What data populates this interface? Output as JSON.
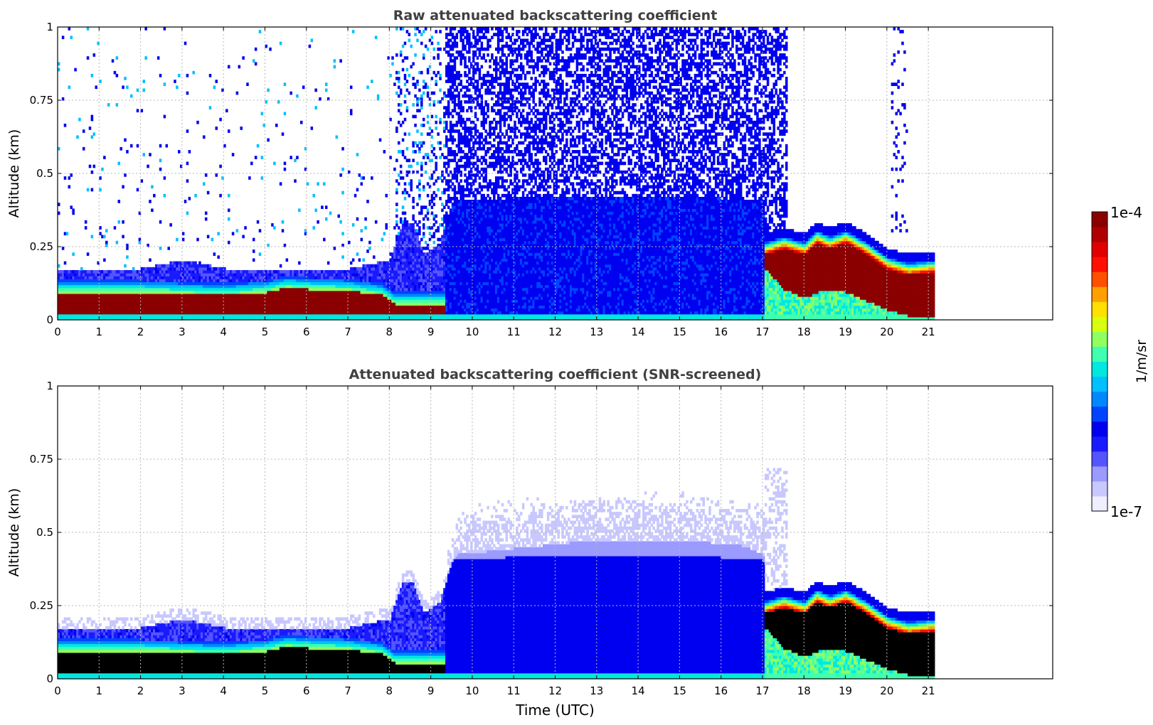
{
  "chart_data": [
    {
      "type": "heatmap",
      "title": "Raw attenuated backscattering coefficient",
      "xlabel": "",
      "ylabel": "Altitude (km)",
      "xlim": [
        0,
        24
      ],
      "ylim": [
        0,
        1
      ],
      "x_ticks": [
        "0",
        "1",
        "2",
        "3",
        "4",
        "5",
        "6",
        "7",
        "8",
        "9",
        "10",
        "11",
        "12",
        "13",
        "14",
        "15",
        "16",
        "17",
        "18",
        "19",
        "20",
        "21"
      ],
      "y_ticks": [
        "0",
        "0.25",
        "0.5",
        "0.75",
        "1"
      ],
      "grid": true,
      "data_end_time": 21.15,
      "layers": [
        {
          "feature": "surface aerosol layer",
          "time_range": [
            0,
            8.1
          ],
          "altitude_top": 0.12,
          "level": "saturated"
        },
        {
          "feature": "surface aerosol layer",
          "time_range": [
            8.3,
            9.3
          ],
          "altitude_top": 0.07,
          "level": "saturated"
        },
        {
          "feature": "noise and weak return",
          "time_range": [
            9.3,
            17.6
          ],
          "altitude_top": 1.0,
          "level": "low"
        },
        {
          "feature": "elevated layer",
          "time_range": [
            17.05,
            21.15
          ],
          "altitude_top": 0.29,
          "level": "saturated"
        }
      ]
    },
    {
      "type": "heatmap",
      "title": "Attenuated backscattering coefficient (SNR-screened)",
      "xlabel": "Time (UTC)",
      "ylabel": "Altitude (km)",
      "xlim": [
        0,
        24
      ],
      "ylim": [
        0,
        1
      ],
      "x_ticks": [
        "0",
        "1",
        "2",
        "3",
        "4",
        "5",
        "6",
        "7",
        "8",
        "9",
        "10",
        "11",
        "12",
        "13",
        "14",
        "15",
        "16",
        "17",
        "18",
        "19",
        "20",
        "21"
      ],
      "y_ticks": [
        "0",
        "0.25",
        "0.5",
        "0.75",
        "1"
      ],
      "grid": true,
      "data_end_time": 21.15,
      "layers": [
        {
          "feature": "surface aerosol layer",
          "time_range": [
            0,
            8.1
          ],
          "altitude_top": 0.12,
          "level": "saturated"
        },
        {
          "feature": "boundary layer",
          "time_range": [
            9.3,
            17.6
          ],
          "altitude_top": 0.55,
          "level": "low"
        },
        {
          "feature": "elevated layer",
          "time_range": [
            17.05,
            21.15
          ],
          "altitude_top": 0.29,
          "level": "saturated"
        }
      ]
    }
  ],
  "colorbar": {
    "label": "1/m/sr",
    "max_label": "1e-4",
    "min_label": "1e-7",
    "colors": [
      "#eeeeff",
      "#c8c8ff",
      "#9a9aff",
      "#5555ff",
      "#1a1aff",
      "#0000f0",
      "#0044ff",
      "#0088ff",
      "#00c0ff",
      "#00e8e0",
      "#40ffb0",
      "#90ff60",
      "#d8ff10",
      "#ffe000",
      "#ffa000",
      "#ff5000",
      "#ff1000",
      "#e00000",
      "#b00000",
      "#8b0000"
    ]
  }
}
